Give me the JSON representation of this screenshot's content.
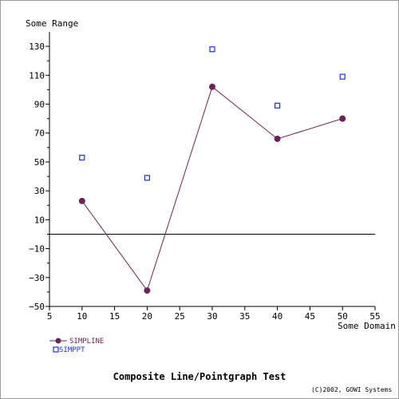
{
  "chart_data": {
    "type": "line",
    "title": "Composite Line/Pointgraph Test",
    "xlabel": "Some Domain",
    "ylabel": "Some Range",
    "xlim": [
      5,
      55
    ],
    "ylim": [
      -50,
      140
    ],
    "x_ticks": [
      5,
      10,
      15,
      20,
      25,
      30,
      35,
      40,
      45,
      50,
      55
    ],
    "y_ticks": [
      -50,
      -30,
      -10,
      10,
      30,
      50,
      70,
      90,
      110,
      130
    ],
    "y_tick_labels": [
      "−50",
      "−30",
      "−10",
      "10",
      "30",
      "50",
      "70",
      "90",
      "110",
      "130"
    ],
    "zero_line": 0,
    "grid": false,
    "legend_position": "bottom-left",
    "series": [
      {
        "name": "SIMPLINE",
        "style": "line-with-markers",
        "color": "#6b2458",
        "x": [
          10,
          20,
          30,
          40,
          50
        ],
        "y": [
          23,
          -39,
          102,
          66,
          80
        ]
      },
      {
        "name": "SIMPPT",
        "style": "points",
        "color": "#1f2fd6",
        "x": [
          10,
          20,
          30,
          40,
          50
        ],
        "y": [
          53,
          39,
          128,
          89,
          109
        ]
      }
    ]
  },
  "footer": {
    "copyright": "(C)2002, GOWI Systems"
  }
}
